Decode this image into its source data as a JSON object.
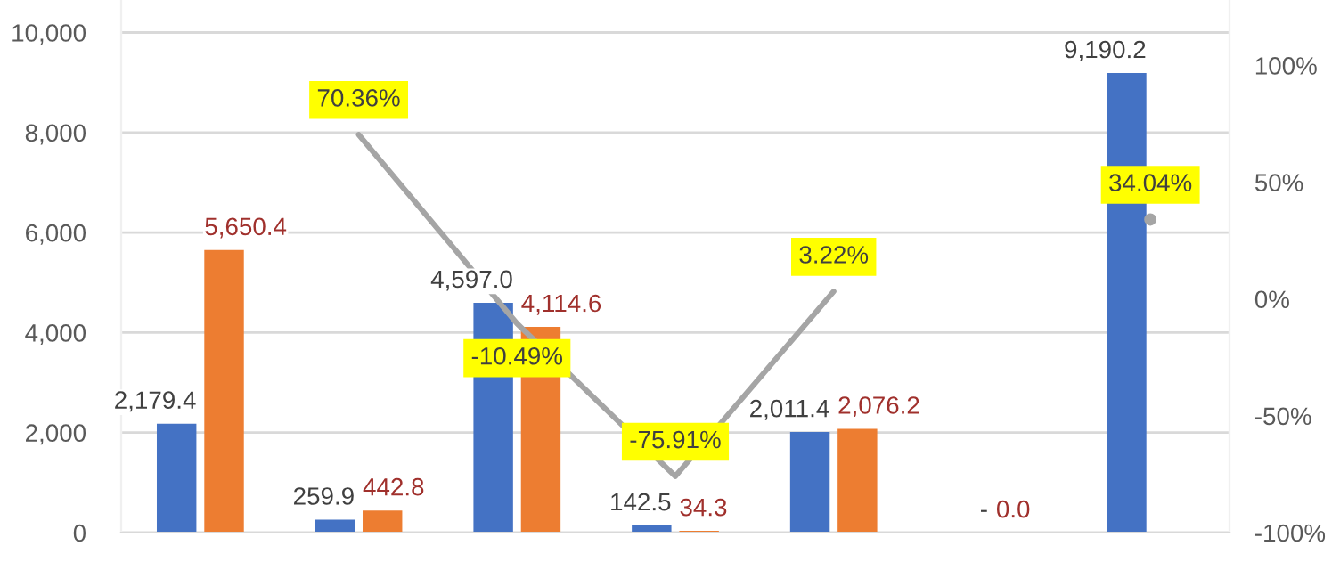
{
  "chart_data": {
    "type": "bar",
    "categories": [
      null,
      null,
      null,
      null,
      null,
      null,
      null
    ],
    "series": [
      {
        "color": "#4472c4",
        "values": [
          2179.4,
          259.9,
          4597.0,
          142.5,
          2011.4,
          0,
          9190.2
        ],
        "value_labels": [
          "2,179.4",
          "259.9",
          "4,597.0",
          "142.5",
          "2,011.4",
          "-",
          "9,190.2"
        ]
      },
      {
        "color": "#ed7d31",
        "values": [
          5650.4,
          442.8,
          4114.6,
          34.3,
          2076.2,
          0.0,
          null
        ],
        "value_labels": [
          "5,650.4",
          "442.8",
          "4,114.6",
          "34.3",
          "2,076.2",
          "0.0",
          null
        ]
      },
      {
        "type": "line",
        "axis": "y2",
        "color": "#a5a5a5",
        "values": [
          null,
          70.36,
          -10.49,
          -75.91,
          3.22,
          null,
          34.04
        ],
        "value_labels": [
          null,
          "70.36%",
          "-10.49%",
          "-75.91%",
          "3.22%",
          null,
          "34.04%"
        ]
      }
    ],
    "ylim": [
      0,
      10650
    ],
    "yticks": [
      {
        "value": 0,
        "label": "0"
      },
      {
        "value": 2000,
        "label": "2,000"
      },
      {
        "value": 4000,
        "label": "4,000"
      },
      {
        "value": 6000,
        "label": "6,000"
      },
      {
        "value": 8000,
        "label": "8,000"
      },
      {
        "value": 10000,
        "label": "10,000"
      }
    ],
    "y2lim": [
      -100,
      128
    ],
    "y2ticks": [
      {
        "value": -100,
        "label": "-100%"
      },
      {
        "value": -50,
        "label": "-50%"
      },
      {
        "value": 0,
        "label": "0%"
      },
      {
        "value": 50,
        "label": "50%"
      },
      {
        "value": 100,
        "label": "100%"
      }
    ],
    "grid": "y"
  }
}
